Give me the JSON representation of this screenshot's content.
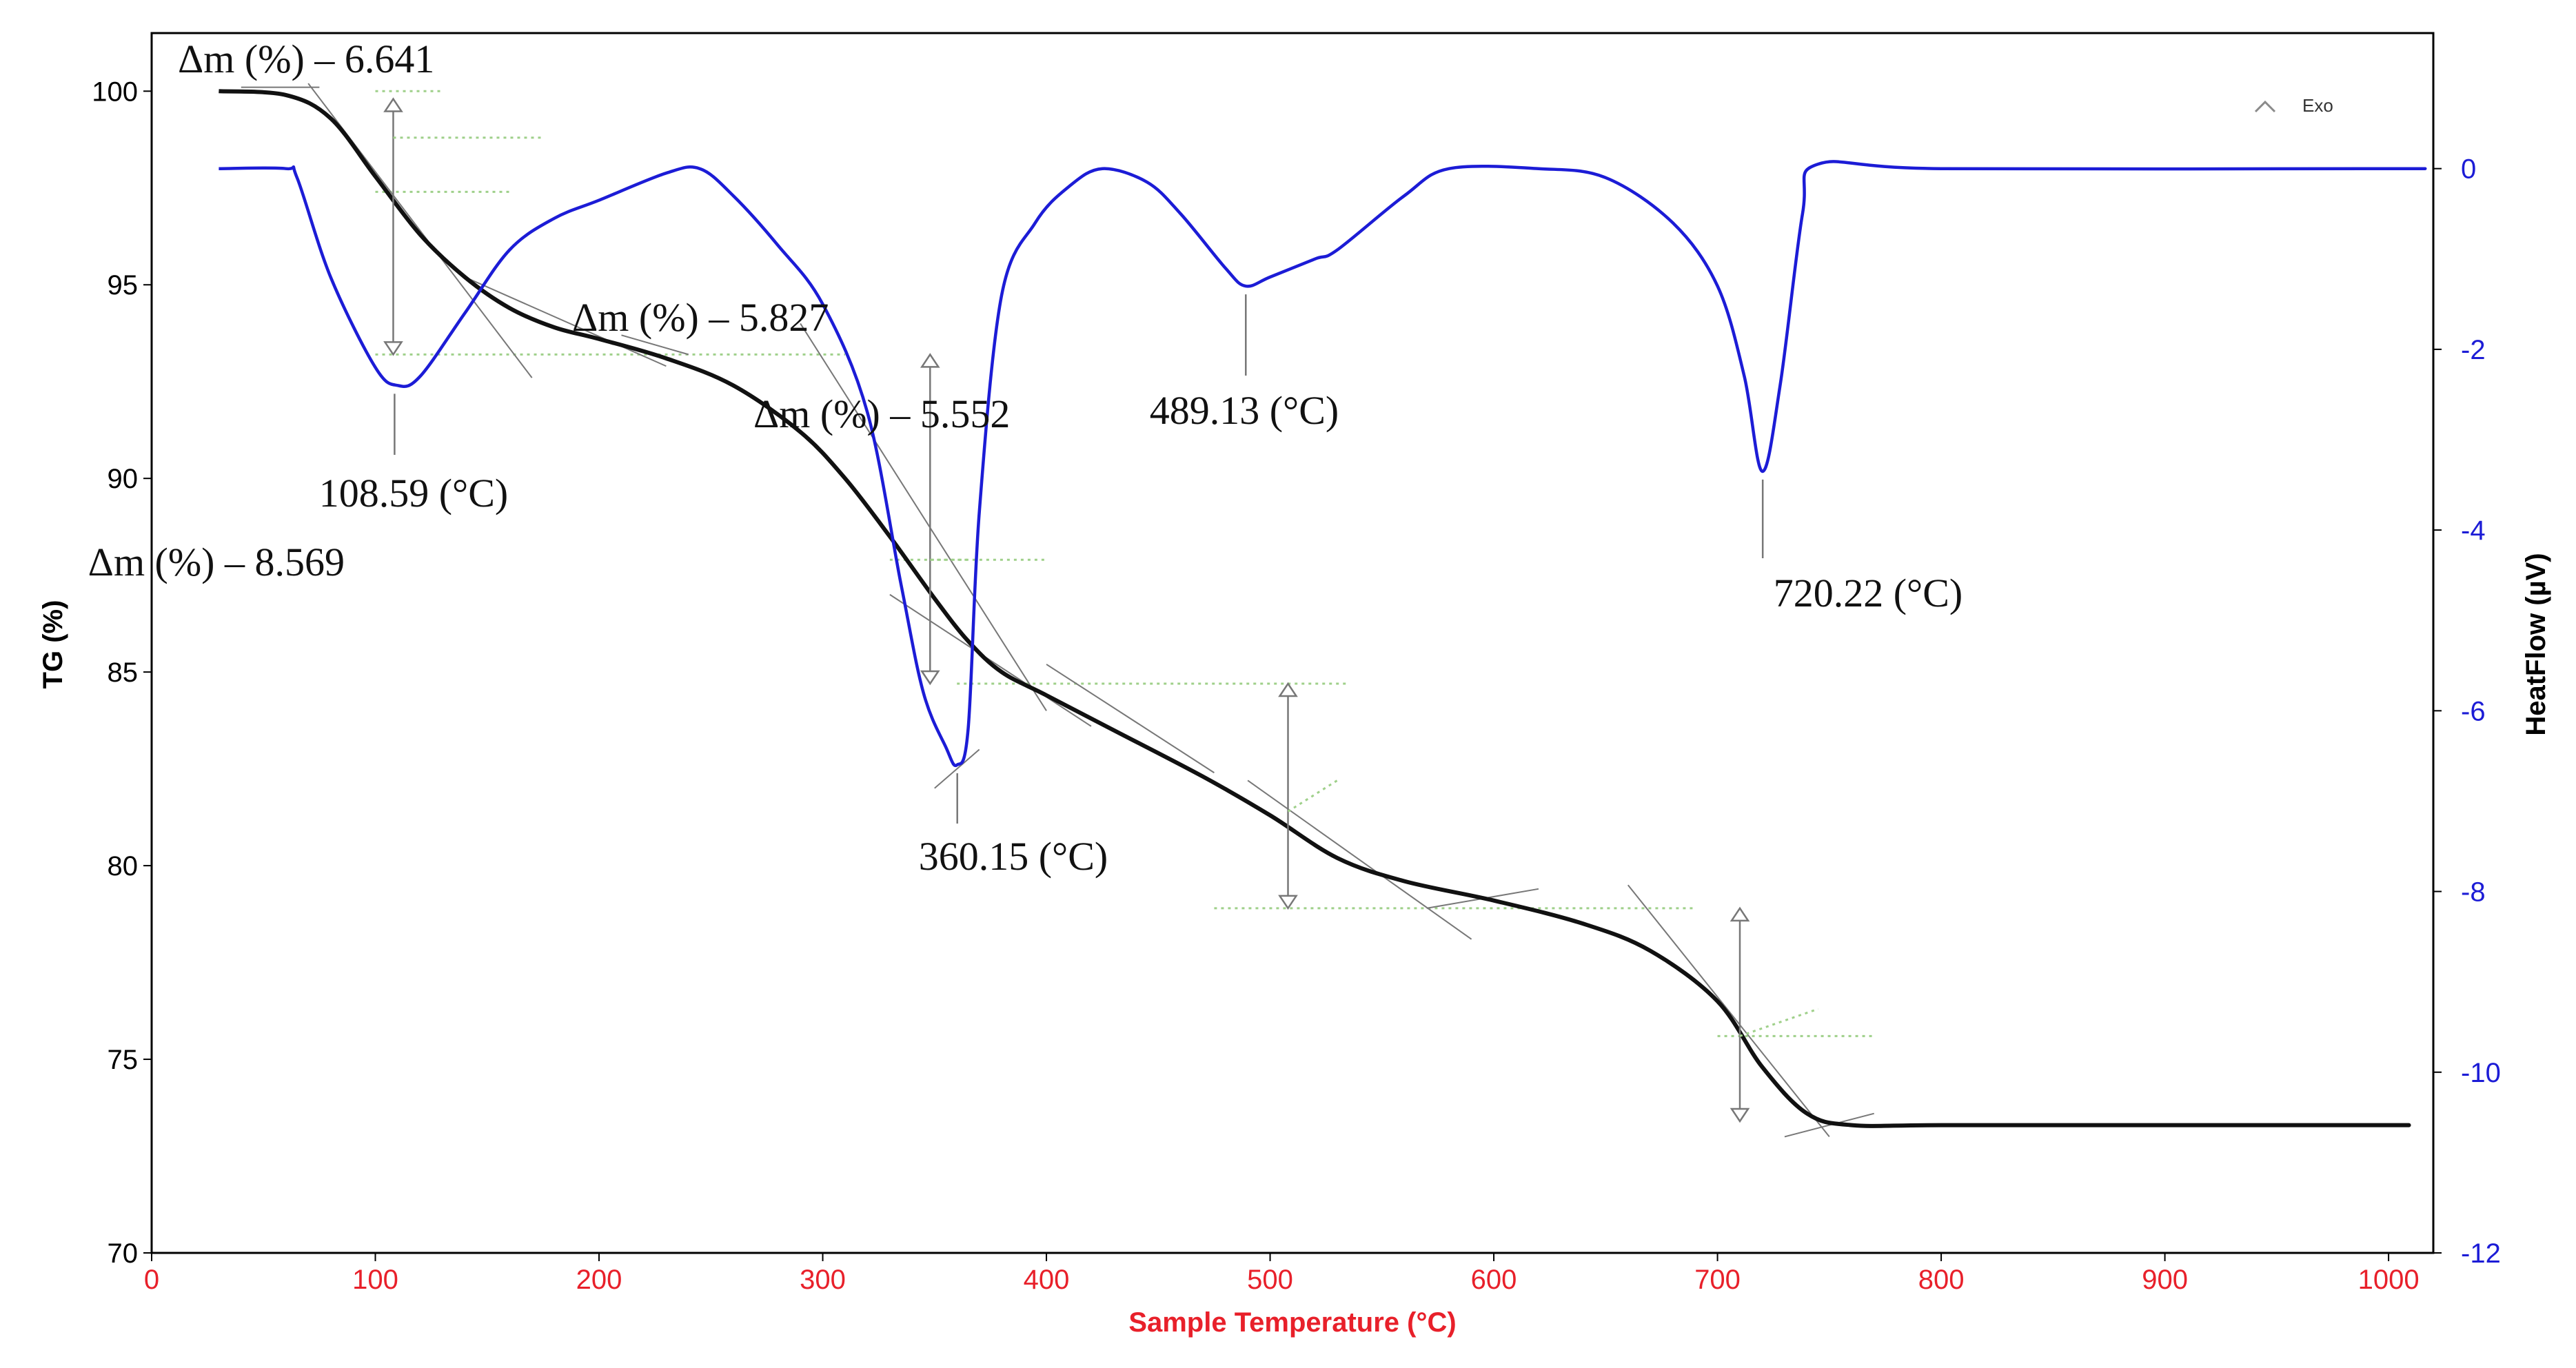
{
  "chart_data": {
    "type": "line",
    "x_axis": {
      "label": "Sample Temperature (°C)",
      "range": [
        0,
        1020
      ],
      "ticks": [
        0,
        100,
        200,
        300,
        400,
        500,
        600,
        700,
        800,
        900,
        1000
      ]
    },
    "y_left": {
      "label": "TG (%)",
      "range": [
        70,
        101.5
      ],
      "ticks": [
        70,
        75,
        80,
        85,
        90,
        95,
        100
      ]
    },
    "y_right": {
      "label": "HeatFlow (µV)",
      "range": [
        -12,
        1.5
      ],
      "ticks": [
        -12,
        -10,
        -8,
        -6,
        -4,
        -2,
        0
      ]
    },
    "legend": {
      "label": "Exo",
      "placement": "top-right"
    },
    "series": [
      {
        "name": "TG",
        "axis": "left",
        "color": "#111111",
        "x": [
          30,
          60,
          80,
          100,
          120,
          140,
          160,
          180,
          200,
          230,
          260,
          290,
          310,
          330,
          350,
          365,
          380,
          400,
          430,
          470,
          500,
          530,
          560,
          600,
          640,
          670,
          700,
          720,
          740,
          760,
          800,
          900,
          1000,
          1005
        ],
        "y": [
          100,
          99.9,
          99.3,
          97.8,
          96.3,
          95.2,
          94.4,
          93.9,
          93.6,
          93.1,
          92.4,
          91.2,
          90.0,
          88.5,
          86.9,
          85.8,
          85.0,
          84.4,
          83.5,
          82.3,
          81.3,
          80.2,
          79.6,
          79.1,
          78.5,
          77.8,
          76.5,
          74.8,
          73.6,
          73.3,
          73.3,
          73.3,
          73.3,
          73.3
        ]
      },
      {
        "name": "HeatFlow",
        "axis": "right",
        "color": "#1c1cd6",
        "x": [
          30,
          60,
          65,
          80,
          100,
          110,
          120,
          140,
          160,
          180,
          200,
          230,
          245,
          260,
          280,
          300,
          320,
          335,
          345,
          355,
          360,
          365,
          370,
          380,
          395,
          410,
          425,
          445,
          460,
          480,
          489,
          500,
          520,
          530,
          560,
          580,
          620,
          650,
          680,
          700,
          712,
          720,
          728,
          738,
          745,
          800,
          1000,
          1005
        ],
        "y": [
          0,
          0,
          -0.1,
          -1.2,
          -2.2,
          -2.4,
          -2.3,
          -1.6,
          -0.9,
          -0.55,
          -0.35,
          -0.05,
          0,
          -0.3,
          -0.85,
          -1.5,
          -2.7,
          -4.6,
          -5.8,
          -6.4,
          -6.6,
          -6.2,
          -3.8,
          -1.4,
          -0.6,
          -0.2,
          0,
          -0.15,
          -0.5,
          -1.1,
          -1.3,
          -1.2,
          -1.0,
          -0.9,
          -0.3,
          0,
          0,
          -0.1,
          -0.6,
          -1.3,
          -2.3,
          -3.35,
          -2.4,
          -0.5,
          0.05,
          0,
          0,
          0
        ]
      }
    ],
    "peak_annotations": [
      {
        "text": "108.59 (°C)",
        "x": 108.59,
        "y": -2.4
      },
      {
        "text": "360.15 (°C)",
        "x": 360.15,
        "y": -6.6
      },
      {
        "text": "489.13 (°C)",
        "x": 489.13,
        "y": -1.3
      },
      {
        "text": "720.22 (°C)",
        "x": 720.22,
        "y": -3.35
      }
    ],
    "mass_loss_annotations": [
      {
        "text": "Δm (%) – 6.641",
        "x": 108,
        "y_top": 99.8,
        "y_bottom": 93.2
      },
      {
        "text": "Δm (%) – 8.569",
        "x": 348,
        "y_top": 93.2,
        "y_bottom": 84.7
      },
      {
        "text": "Δm (%) – 5.827",
        "x": 508,
        "y_top": 84.7,
        "y_bottom": 78.9
      },
      {
        "text": "Δm (%) – 5.552",
        "x": 710,
        "y_top": 78.9,
        "y_bottom": 73.4
      }
    ]
  }
}
